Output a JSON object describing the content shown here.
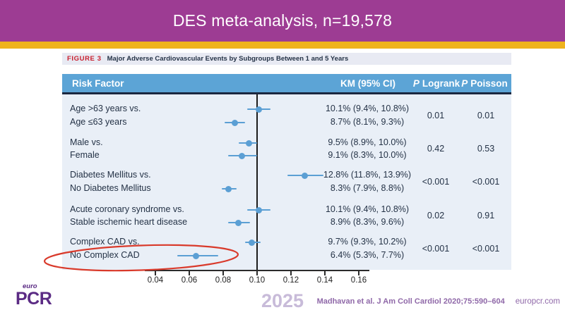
{
  "banner": {
    "title": "DES meta-analysis, n=19,578"
  },
  "figure": {
    "label": "FIGURE 3",
    "caption": "Major Adverse Cardiovascular Events by Subgroups Between 1 and 5 Years",
    "columns": {
      "risk_factor": "Risk Factor",
      "km": "KM (95% CI)",
      "p_italic": "P",
      "logrank": "Logrank",
      "poisson": "Poisson"
    }
  },
  "chart_data": {
    "type": "forest",
    "x_ticks": [
      "0.04",
      "0.06",
      "0.08",
      "0.10",
      "0.12",
      "0.14",
      "0.16"
    ],
    "x_tick_values": [
      0.04,
      0.06,
      0.08,
      0.1,
      0.12,
      0.14,
      0.16
    ],
    "reference_line": 0.1,
    "groups": [
      {
        "rows": [
          {
            "label": "Age >63 years vs.",
            "estimate": 0.101,
            "ci": [
              0.094,
              0.108
            ],
            "km_text": "10.1% (9.4%, 10.8%)"
          },
          {
            "label": "Age ≤63 years",
            "estimate": 0.087,
            "ci": [
              0.081,
              0.093
            ],
            "km_text": "8.7% (8.1%, 9.3%)"
          }
        ],
        "p_logrank": "0.01",
        "p_poisson": "0.01"
      },
      {
        "rows": [
          {
            "label": "Male vs.",
            "estimate": 0.095,
            "ci": [
              0.089,
              0.1
            ],
            "km_text": "9.5% (8.9%, 10.0%)"
          },
          {
            "label": "Female",
            "estimate": 0.091,
            "ci": [
              0.083,
              0.1
            ],
            "km_text": "9.1% (8.3%, 10.0%)"
          }
        ],
        "p_logrank": "0.42",
        "p_poisson": "0.53"
      },
      {
        "rows": [
          {
            "label": "Diabetes Mellitus vs.",
            "estimate": 0.128,
            "ci": [
              0.118,
              0.139
            ],
            "km_text": "12.8% (11.8%, 13.9%)"
          },
          {
            "label": "No Diabetes Mellitus",
            "estimate": 0.083,
            "ci": [
              0.079,
              0.088
            ],
            "km_text": "8.3% (7.9%, 8.8%)"
          }
        ],
        "p_logrank": "<0.001",
        "p_poisson": "<0.001"
      },
      {
        "rows": [
          {
            "label": "Acute coronary syndrome vs.",
            "estimate": 0.101,
            "ci": [
              0.094,
              0.108
            ],
            "km_text": "10.1% (9.4%, 10.8%)"
          },
          {
            "label": "Stable ischemic heart disease",
            "estimate": 0.089,
            "ci": [
              0.083,
              0.096
            ],
            "km_text": "8.9% (8.3%, 9.6%)"
          }
        ],
        "p_logrank": "0.02",
        "p_poisson": "0.91"
      },
      {
        "rows": [
          {
            "label": "Complex CAD vs.",
            "estimate": 0.097,
            "ci": [
              0.093,
              0.102
            ],
            "km_text": "9.7% (9.3%, 10.2%)"
          },
          {
            "label": "No Complex CAD",
            "estimate": 0.064,
            "ci": [
              0.053,
              0.077
            ],
            "km_text": "6.4% (5.3%, 7.7%)"
          }
        ],
        "p_logrank": "<0.001",
        "p_poisson": "<0.001"
      }
    ]
  },
  "annotation": {
    "shape": "ellipse",
    "target": "No Complex CAD",
    "color": "#D93A2B"
  },
  "footer": {
    "logo_top": "euro",
    "logo_main": "PCR",
    "year": "2025",
    "citation": "Madhavan et al. J Am Coll Cardiol 2020;75:590–604",
    "site": "europcr.com"
  },
  "colors": {
    "banner_purple": "#9D3C93",
    "gold": "#EFB31D",
    "caption_bg": "#E8EAF3",
    "figure_red": "#C8202F",
    "header_blue": "#5CA4D6",
    "header_sep_navy": "#1B2740",
    "body_blue": "#E9EFF7",
    "marker_blue": "#5B9FD4",
    "text_navy": "#243246",
    "logo_purple": "#5B2B84",
    "year_lavender": "#C8BBD9",
    "citation_purple": "#8F68A8"
  }
}
